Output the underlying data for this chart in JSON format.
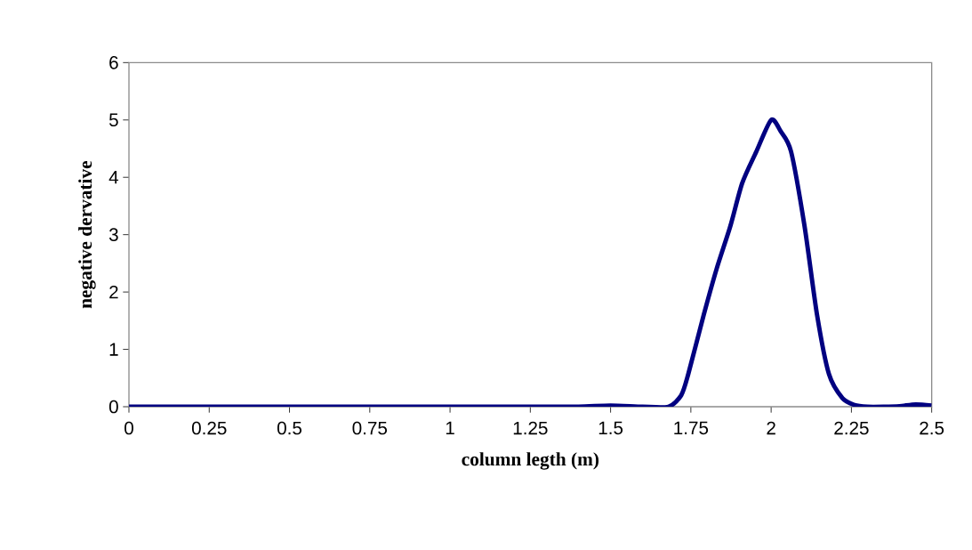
{
  "chart_data": {
    "type": "line",
    "xlabel": "column legth (m)",
    "ylabel": "negative dervative",
    "x": [
      0,
      0.25,
      0.5,
      0.75,
      1,
      1.25,
      1.4,
      1.5,
      1.6,
      1.68,
      1.72,
      1.742,
      1.79,
      1.83,
      1.873,
      1.91,
      1.954,
      2,
      2.03,
      2.062,
      2.104,
      2.143,
      2.18,
      2.222,
      2.26,
      2.3,
      2.35,
      2.4,
      2.45,
      2.5
    ],
    "values": [
      0,
      0,
      0,
      0,
      0,
      0,
      0,
      0.02,
      0,
      0,
      0.2,
      0.57,
      1.6,
      2.4,
      3.15,
      3.9,
      4.45,
      5.0,
      4.8,
      4.45,
      3.15,
      1.6,
      0.57,
      0.15,
      0.03,
      0,
      0,
      0.01,
      0.04,
      0.02
    ],
    "color": "#000080",
    "xlim": [
      0,
      2.5
    ],
    "ylim": [
      0,
      6
    ],
    "xticks": [
      0,
      0.25,
      0.5,
      0.75,
      1,
      1.25,
      1.5,
      1.75,
      2,
      2.25,
      2.5
    ],
    "yticks": [
      0,
      1,
      2,
      3,
      4,
      5,
      6
    ],
    "grid": false
  }
}
